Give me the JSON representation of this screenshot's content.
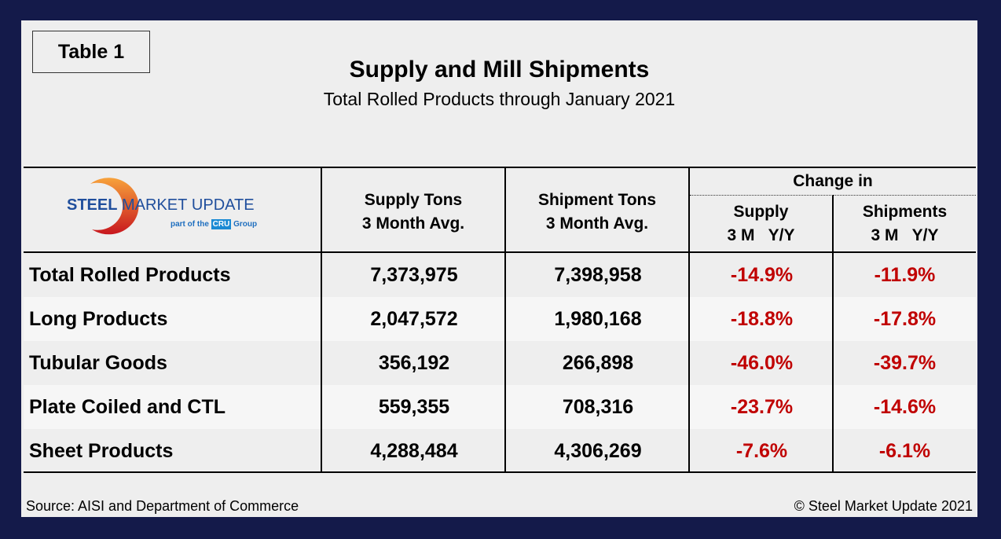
{
  "table_label": "Table 1",
  "title": "Supply and Mill Shipments",
  "subtitle": "Total Rolled Products through January 2021",
  "logo": {
    "text1": "STEEL",
    "text2": "MARKET",
    "text3": "UPDATE",
    "tagline1": "part of the",
    "cru": "CRU",
    "tagline2": "Group"
  },
  "headers": {
    "supply": [
      "Supply Tons",
      "3 Month Avg."
    ],
    "shipment": [
      "Shipment Tons",
      "3 Month Avg."
    ],
    "change": "Change in",
    "change_supply": [
      "Supply",
      "3 M   Y/Y"
    ],
    "change_shipments": [
      "Shipments",
      "3 M   Y/Y"
    ]
  },
  "rows": [
    {
      "label": "Total Rolled Products",
      "supply": "7,373,975",
      "shipments": "7,398,958",
      "chg_supply": "-14.9%",
      "chg_shipments": "-11.9%"
    },
    {
      "label": "Long Products",
      "supply": "2,047,572",
      "shipments": "1,980,168",
      "chg_supply": "-18.8%",
      "chg_shipments": "-17.8%"
    },
    {
      "label": "Tubular Goods",
      "supply": "356,192",
      "shipments": "266,898",
      "chg_supply": "-46.0%",
      "chg_shipments": "-39.7%"
    },
    {
      "label": "Plate Coiled and CTL",
      "supply": "559,355",
      "shipments": "708,316",
      "chg_supply": "-23.7%",
      "chg_shipments": "-14.6%"
    },
    {
      "label": "Sheet Products",
      "supply": "4,288,484",
      "shipments": "4,306,269",
      "chg_supply": "-7.6%",
      "chg_shipments": "-6.1%"
    }
  ],
  "footer": {
    "source": "Source: AISI and Department of Commerce",
    "copyright": "© Steel Market Update 2021"
  },
  "colors": {
    "negative": "#c00000",
    "frame": "#141a4a",
    "logo_blue": "#1f4e9c"
  }
}
